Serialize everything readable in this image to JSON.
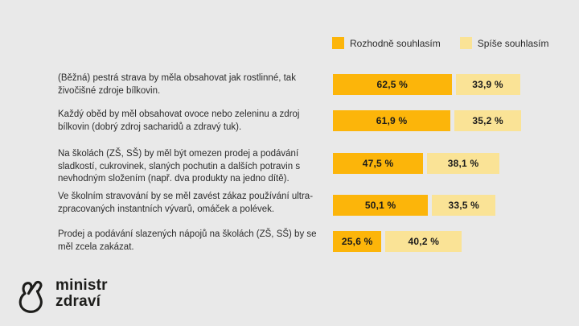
{
  "background_color": "#e9e9e9",
  "legend": {
    "items": [
      {
        "label": "Rozhodně souhlasím",
        "color": "#fcb50a"
      },
      {
        "label": "Spíše souhlasím",
        "color": "#fae396"
      }
    ]
  },
  "chart_data": {
    "type": "bar",
    "orientation": "horizontal",
    "variant": "paired-segment-bars",
    "unit": "%",
    "xlim": [
      0,
      100
    ],
    "legend_position": "top-right",
    "categories": [
      "(Běžná) pestrá strava by měla obsahovat jak rostlinné, tak živočišné zdroje bílkovin.",
      "Každý oběd by měl obsahovat ovoce nebo zeleninu a zdroj bílkovin (dobrý zdroj sacharidů a zdravý tuk).",
      "Na školách (ZŠ, SŠ) by měl být omezen prodej a podávání sladkostí, cukrovinek, slaných pochutin a dalších potravin s nevhodným složením (např. dva produkty na jedno dítě).",
      "Ve školním stravování by se měl zavést zákaz používání ultra-zpracovaných instantních vývarů, omáček a polévek.",
      "Prodej a podávání slazených nápojů na školách (ZŠ, SŠ) by se měl zcela zakázat."
    ],
    "series": [
      {
        "name": "Rozhodně souhlasím",
        "color": "#fcb50a",
        "values": [
          62.5,
          61.9,
          47.5,
          50.1,
          25.6
        ],
        "value_labels": [
          "62,5 %",
          "61,9 %",
          "47,5 %",
          "50,1 %",
          "25,6 %"
        ]
      },
      {
        "name": "Spíše souhlasím",
        "color": "#fae396",
        "values": [
          33.9,
          35.2,
          38.1,
          33.5,
          40.2
        ],
        "value_labels": [
          "33,9 %",
          "35,2 %",
          "38,1 %",
          "33,5 %",
          "40,2 %"
        ]
      }
    ]
  },
  "logo": {
    "line1": "ministr",
    "line2": "zdraví",
    "icon": "pointing-hand-icon"
  }
}
